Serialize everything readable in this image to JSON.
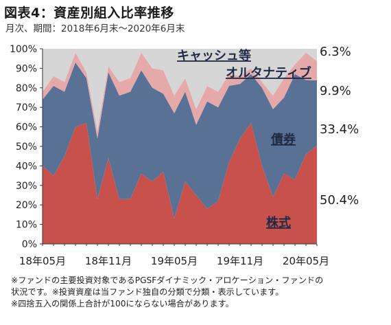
{
  "header": {
    "title": "図表4：資産別組入比率推移",
    "subtitle": "月次、期間：2018年6月末～2020年6月末"
  },
  "notes": [
    "※ファンドの主要投資対象であるPGSFダイナミック・アロケーション・ファンドの",
    "状況です。※投資資産は当ファンド独自の分類で分類・表示しています。",
    "※四捨五入の関係上合計が100にならない場合があります。"
  ],
  "colors": {
    "stocks": "#c9514c",
    "bonds": "#5a7196",
    "alternative": "#e6a9a9",
    "cash": "#d6d6d6",
    "label_dark": "#1f2a44"
  },
  "chart_data": {
    "type": "area",
    "stacked": true,
    "ylim": [
      0,
      100
    ],
    "yticks": [
      "0%",
      "10%",
      "20%",
      "30%",
      "40%",
      "50%",
      "60%",
      "70%",
      "80%",
      "90%",
      "100%"
    ],
    "xticks": [
      {
        "index": 0,
        "label": "18年05月"
      },
      {
        "index": 6,
        "label": "18年11月"
      },
      {
        "index": 12,
        "label": "19年05月"
      },
      {
        "index": 18,
        "label": "19年11月"
      },
      {
        "index": 24,
        "label": "20年05月"
      }
    ],
    "n_points": 26,
    "series": [
      {
        "name": "株式",
        "key": "stocks",
        "values": [
          40,
          35,
          45,
          60,
          62,
          23,
          44,
          23,
          23,
          36,
          32,
          37,
          13,
          32,
          25,
          18,
          22,
          42,
          54,
          62,
          40,
          24,
          36,
          33,
          46,
          50.4
        ]
      },
      {
        "name": "債券",
        "key": "bonds",
        "values": [
          34,
          46,
          33,
          33,
          23,
          31,
          44,
          53,
          55,
          53,
          48,
          40,
          54,
          46,
          36,
          55,
          48,
          39,
          28,
          25,
          40,
          45,
          39,
          54,
          38,
          33.4
        ]
      },
      {
        "name": "オルタナティブ",
        "key": "alternative",
        "values": [
          4,
          5,
          5,
          5,
          3,
          4,
          3,
          7,
          7,
          9,
          10,
          12,
          9,
          7,
          8,
          8,
          8,
          6,
          4,
          3,
          3,
          7,
          10,
          5,
          14,
          9.9
        ]
      },
      {
        "name": "キャッシュ等",
        "key": "cash",
        "values": [
          22,
          14,
          17,
          2,
          12,
          42,
          9,
          17,
          15,
          2,
          10,
          11,
          24,
          15,
          31,
          19,
          22,
          13,
          14,
          10,
          17,
          24,
          15,
          8,
          2,
          6.3
        ]
      }
    ],
    "end_labels": [
      {
        "key": "cash",
        "text": "6.3%"
      },
      {
        "key": "alternative",
        "text": "9.9%"
      },
      {
        "key": "bonds",
        "text": "33.4%"
      },
      {
        "key": "stocks",
        "text": "50.4%"
      }
    ]
  }
}
